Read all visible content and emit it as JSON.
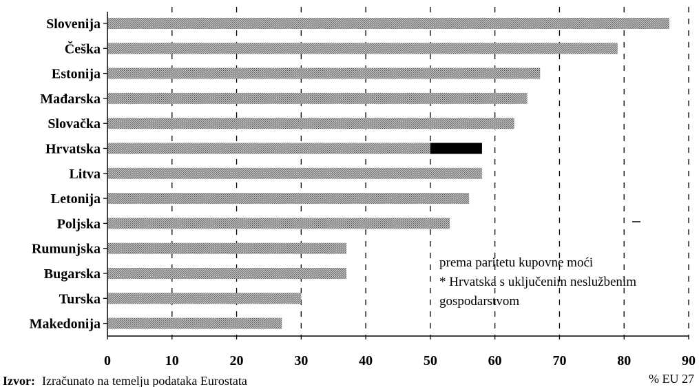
{
  "chart_data": {
    "type": "bar",
    "orientation": "horizontal",
    "categories": [
      "Slovenija",
      "Češka",
      "Estonija",
      "Mađarska",
      "Slovačka",
      "Hrvatska",
      "Litva",
      "Letonija",
      "Poljska",
      "Rumunjska",
      "Bugarska",
      "Turska",
      "Makedonija"
    ],
    "values": [
      87,
      79,
      67,
      65,
      63,
      58,
      58,
      56,
      53,
      37,
      37,
      30,
      27
    ],
    "highlight": {
      "category": "Hrvatska",
      "base_value": 50,
      "color": "#000000"
    },
    "bar_color": "#9a9a9a",
    "xlim": [
      0,
      90
    ],
    "xticks": [
      "0",
      "10",
      "20",
      "30",
      "40",
      "50",
      "60",
      "70",
      "80",
      "90"
    ],
    "grid": "vertical dashed",
    "xlabel_unit": "% EU 27",
    "notes": [
      "prema paritetu kupovne moći",
      "* Hrvatska s uključenim neslužbenim",
      "gospodarstvom"
    ],
    "source_label": "Izvor:",
    "source_text": "Izračunato na temelju podataka Eurostata"
  }
}
